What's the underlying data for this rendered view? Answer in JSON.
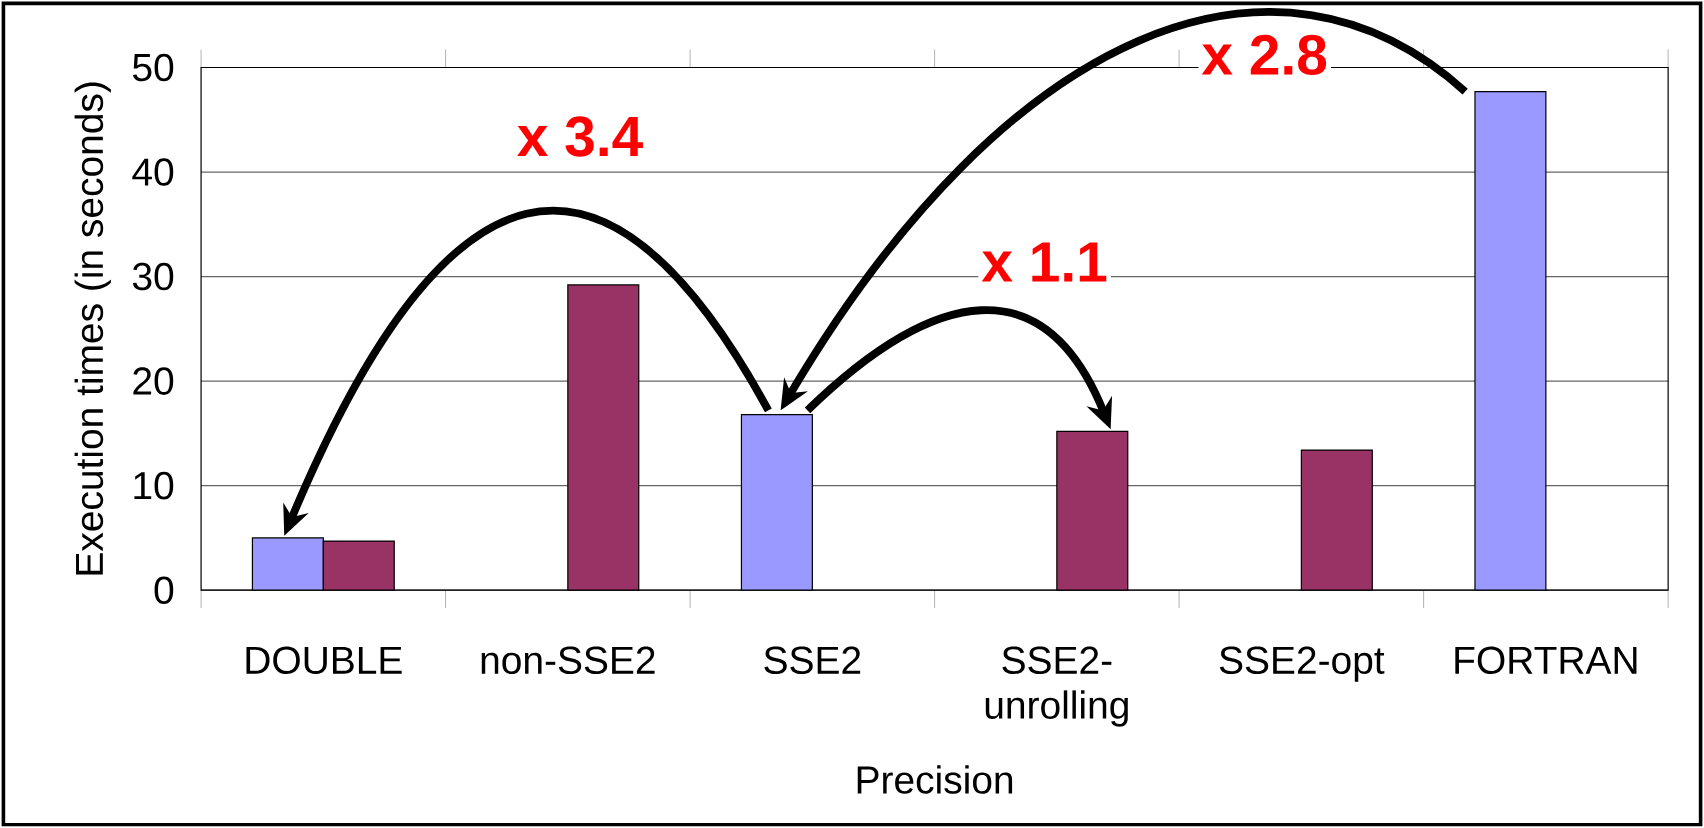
{
  "chart_data": {
    "type": "bar",
    "xlabel": "Precision",
    "ylabel": "Execution times (in seconds)",
    "categories": [
      "DOUBLE",
      "non-SSE2",
      "SSE2",
      "SSE2-unrolling",
      "SSE2-opt",
      "FORTRAN"
    ],
    "series": [
      {
        "color": "#9999ff",
        "values": [
          5.0,
          null,
          16.8,
          null,
          null,
          47.7
        ]
      },
      {
        "color": "#993366",
        "values": [
          4.7,
          29.2,
          null,
          15.2,
          13.4,
          null
        ]
      }
    ],
    "ylim": [
      0,
      50
    ],
    "yticks": [
      0,
      10,
      20,
      30,
      40,
      50
    ],
    "grid": "y",
    "annotations": [
      "x 3.4",
      "x 1.1",
      "x 2.8"
    ]
  }
}
